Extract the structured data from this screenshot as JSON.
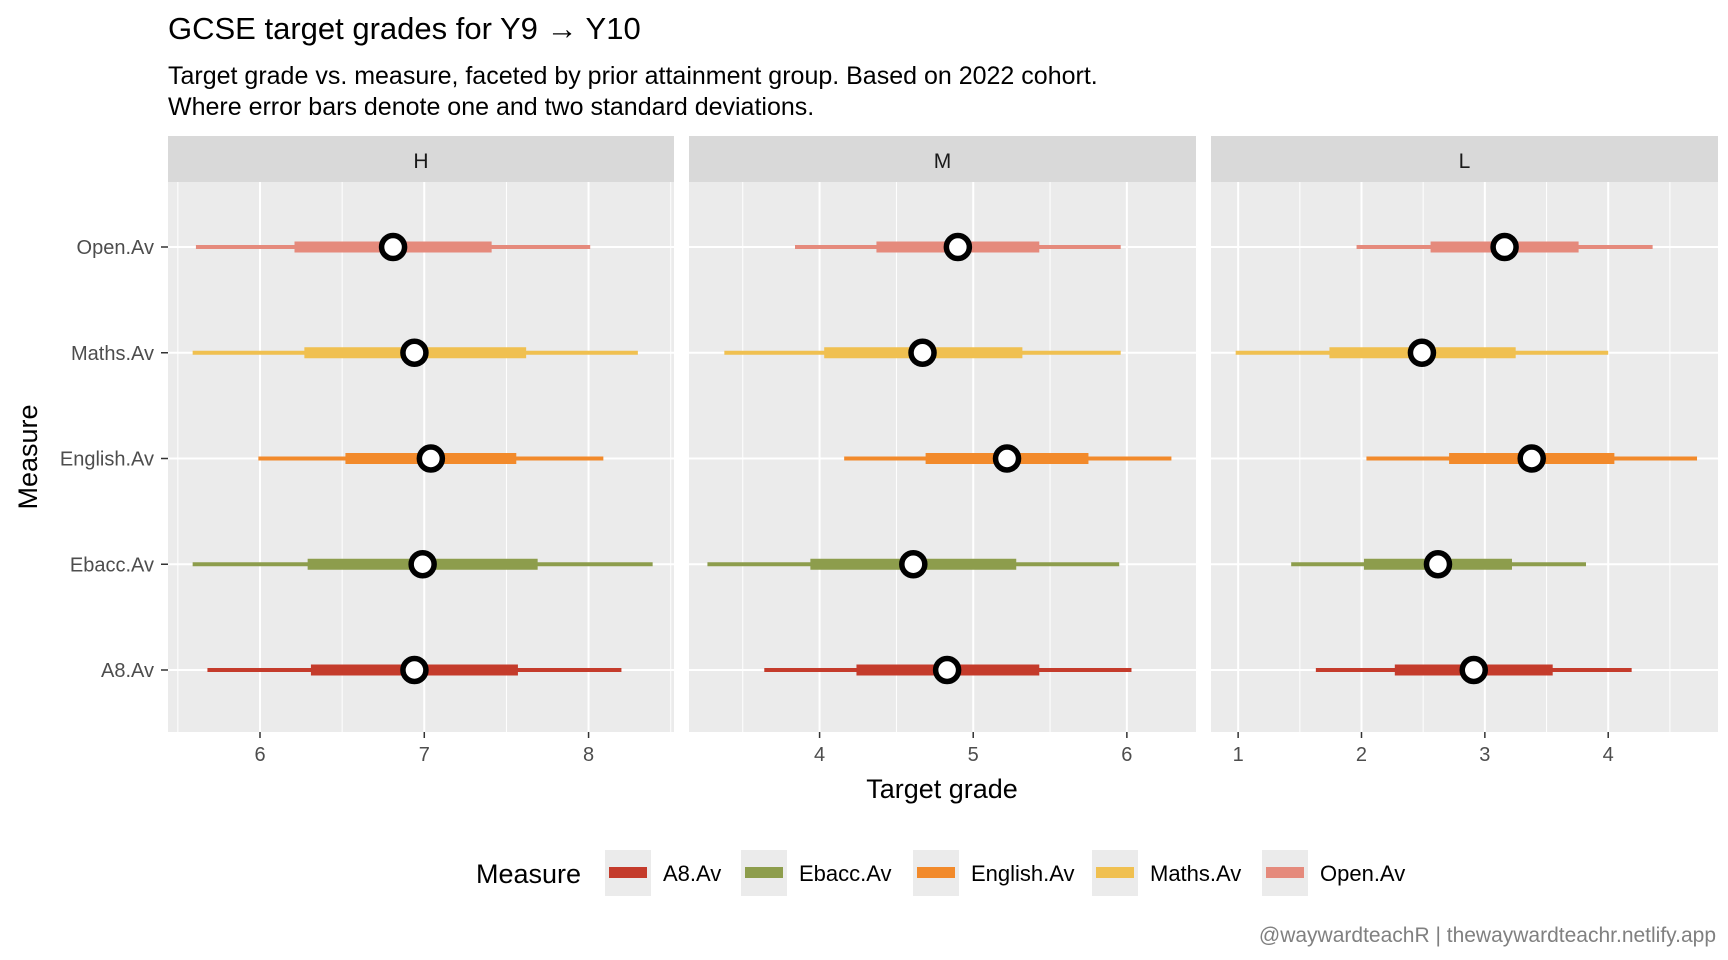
{
  "chart_data": {
    "type": "interval",
    "title": "GCSE target grades for Y9 → Y10",
    "subtitle_lines": [
      "Target grade vs. measure, faceted by prior attainment group.  Based on 2022 cohort.",
      "Where error bars denote one and two standard deviations."
    ],
    "xlabel": "Target grade",
    "ylabel": "Measure",
    "caption": "@waywardteachR | thewaywardteachr.netlify.app",
    "categories": [
      "A8.Av",
      "Ebacc.Av",
      "English.Av",
      "Maths.Av",
      "Open.Av"
    ],
    "legend": {
      "title": "Measure",
      "position": "bottom",
      "items": [
        {
          "label": "A8.Av",
          "color": "#c43b2b"
        },
        {
          "label": "Ebacc.Av",
          "color": "#8d9d4c"
        },
        {
          "label": "English.Av",
          "color": "#f28a2b"
        },
        {
          "label": "Maths.Av",
          "color": "#f0c050"
        },
        {
          "label": "Open.Av",
          "color": "#e58a7c"
        }
      ]
    },
    "panels": [
      {
        "label": "H",
        "xlim": [
          5.44,
          8.52
        ],
        "xticks": [
          6,
          7,
          8
        ],
        "series": [
          {
            "measure": "A8.Av",
            "mean": 6.94,
            "sd1": [
              6.31,
              7.57
            ],
            "sd2": [
              5.68,
              8.2
            ]
          },
          {
            "measure": "Ebacc.Av",
            "mean": 6.99,
            "sd1": [
              6.29,
              7.69
            ],
            "sd2": [
              5.59,
              8.39
            ]
          },
          {
            "measure": "English.Av",
            "mean": 7.04,
            "sd1": [
              6.52,
              7.56
            ],
            "sd2": [
              5.99,
              8.09
            ]
          },
          {
            "measure": "Maths.Av",
            "mean": 6.94,
            "sd1": [
              6.27,
              7.62
            ],
            "sd2": [
              5.59,
              8.3
            ]
          },
          {
            "measure": "Open.Av",
            "mean": 6.81,
            "sd1": [
              6.21,
              7.41
            ],
            "sd2": [
              5.61,
              8.01
            ]
          }
        ]
      },
      {
        "label": "M",
        "xlim": [
          3.15,
          6.45
        ],
        "xticks": [
          4,
          5,
          6
        ],
        "series": [
          {
            "measure": "A8.Av",
            "mean": 4.83,
            "sd1": [
              4.24,
              5.43
            ],
            "sd2": [
              3.64,
              6.03
            ]
          },
          {
            "measure": "Ebacc.Av",
            "mean": 4.61,
            "sd1": [
              3.94,
              5.28
            ],
            "sd2": [
              3.27,
              5.95
            ]
          },
          {
            "measure": "English.Av",
            "mean": 5.22,
            "sd1": [
              4.69,
              5.75
            ],
            "sd2": [
              4.16,
              6.29
            ]
          },
          {
            "measure": "Maths.Av",
            "mean": 4.67,
            "sd1": [
              4.03,
              5.32
            ],
            "sd2": [
              3.38,
              5.96
            ]
          },
          {
            "measure": "Open.Av",
            "mean": 4.9,
            "sd1": [
              4.37,
              5.43
            ],
            "sd2": [
              3.84,
              5.96
            ]
          }
        ]
      },
      {
        "label": "L",
        "xlim": [
          0.78,
          4.89
        ],
        "xticks": [
          1,
          2,
          3,
          4
        ],
        "series": [
          {
            "measure": "A8.Av",
            "mean": 2.91,
            "sd1": [
              2.27,
              3.55
            ],
            "sd2": [
              1.63,
              4.19
            ]
          },
          {
            "measure": "Ebacc.Av",
            "mean": 2.62,
            "sd1": [
              2.02,
              3.22
            ],
            "sd2": [
              1.43,
              3.82
            ]
          },
          {
            "measure": "English.Av",
            "mean": 3.38,
            "sd1": [
              2.71,
              4.05
            ],
            "sd2": [
              2.04,
              4.72
            ]
          },
          {
            "measure": "Maths.Av",
            "mean": 2.49,
            "sd1": [
              1.74,
              3.25
            ],
            "sd2": [
              0.98,
              4.0
            ]
          },
          {
            "measure": "Open.Av",
            "mean": 3.16,
            "sd1": [
              2.56,
              3.76
            ],
            "sd2": [
              1.96,
              4.36
            ]
          }
        ]
      }
    ]
  }
}
